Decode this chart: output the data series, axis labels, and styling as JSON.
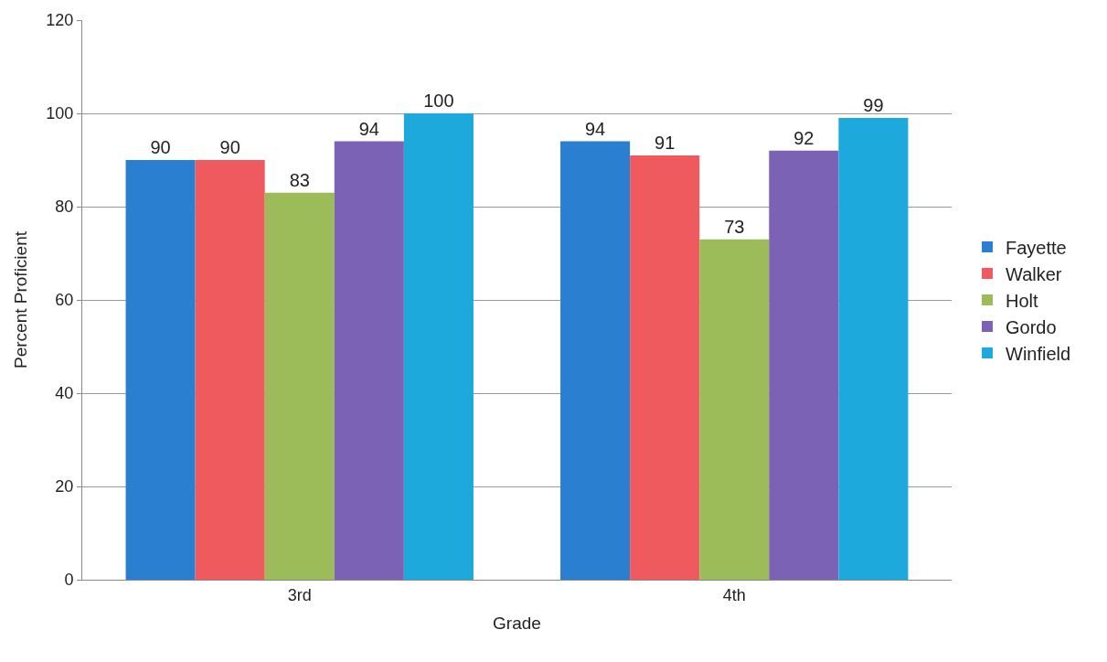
{
  "chart_data": {
    "type": "bar",
    "xlabel": "Grade",
    "ylabel": "Percent Proficient",
    "categories": [
      "3rd",
      "4th"
    ],
    "series": [
      {
        "name": "Fayette",
        "color": "#2b7fd0",
        "values": [
          90,
          94
        ]
      },
      {
        "name": "Walker",
        "color": "#ee5a5e",
        "values": [
          90,
          91
        ]
      },
      {
        "name": "Holt",
        "color": "#9cbb59",
        "values": [
          83,
          73
        ]
      },
      {
        "name": "Gordo",
        "color": "#7b62b5",
        "values": [
          94,
          92
        ]
      },
      {
        "name": "Winfield",
        "color": "#1ea9dc",
        "values": [
          100,
          99
        ]
      }
    ],
    "ylim": [
      0,
      120
    ],
    "yticks": [
      0,
      20,
      40,
      60,
      80,
      100,
      120
    ],
    "grid": "y",
    "legend": "right",
    "data_labels": true
  }
}
